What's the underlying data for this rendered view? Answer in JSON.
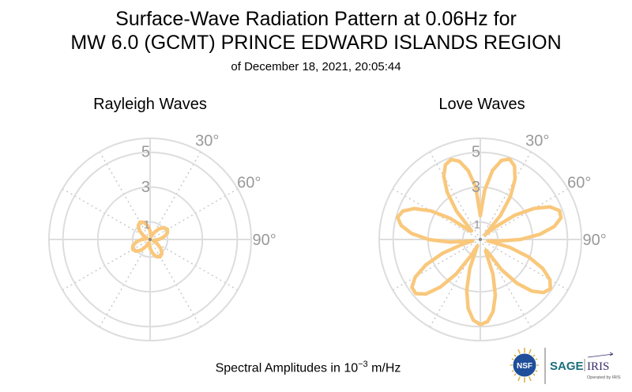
{
  "header": {
    "title_line1": "Surface-Wave Radiation Pattern at 0.06Hz for",
    "title_line2": "MW 6.0 (GCMT) PRINCE EDWARD ISLANDS REGION",
    "subtitle": "of December 18, 2021, 20:05:44"
  },
  "footer": {
    "units_prefix": "Spectral Amplitudes in ",
    "units_base": "10",
    "units_exp": "−3",
    "units_suffix": " m/Hz"
  },
  "logos": {
    "nsf": "NSF",
    "sage": "SAGE",
    "iris": "IRIS",
    "operated": "Operated by IRIS"
  },
  "colors": {
    "pattern": "#f9c87c",
    "grid_circle": "#dddddd",
    "grid_dotted": "#c8c8c8",
    "tick_label": "#999999"
  },
  "chart_data": [
    {
      "type": "polar-line",
      "title": "Rayleigh Waves",
      "radial_ticks": [
        "1",
        "3",
        "5"
      ],
      "radial_tick_values": [
        1,
        3,
        5
      ],
      "angular_ticks": [
        "30°",
        "60°",
        "90°"
      ],
      "angular_tick_values": [
        30,
        60,
        90
      ],
      "rmax": 5.8,
      "angular_grid_step_deg": 30,
      "direction": "clockwise",
      "zero_at": "north",
      "series": [
        {
          "theta_deg": [
            0,
            10,
            20,
            30,
            40,
            50,
            60,
            70,
            80,
            90,
            100,
            110,
            120,
            130,
            140,
            150,
            160,
            170,
            180,
            190,
            200,
            210,
            220,
            230,
            240,
            250,
            260,
            270,
            280,
            290,
            300,
            310,
            320,
            330,
            340,
            350
          ],
          "r": [
            0.5,
            0.22,
            0.18,
            0.45,
            0.8,
            1.05,
            1.15,
            1.05,
            0.8,
            0.5,
            0.22,
            0.18,
            0.45,
            0.8,
            1.05,
            1.15,
            1.05,
            0.8,
            0.5,
            0.22,
            0.18,
            0.45,
            0.8,
            1.05,
            1.15,
            1.05,
            0.8,
            0.5,
            0.22,
            0.18,
            0.45,
            0.8,
            1.05,
            1.15,
            1.05,
            0.8
          ]
        }
      ]
    },
    {
      "type": "polar-line",
      "title": "Love Waves",
      "radial_ticks": [
        "1",
        "3",
        "5"
      ],
      "radial_tick_values": [
        1,
        3,
        5
      ],
      "angular_ticks": [
        "30°",
        "60°",
        "90°"
      ],
      "angular_tick_values": [
        30,
        60,
        90
      ],
      "rmax": 5.8,
      "angular_grid_step_deg": 30,
      "direction": "clockwise",
      "zero_at": "north",
      "series": [
        {
          "theta_deg": [
            0,
            5,
            10,
            15,
            20,
            25,
            30,
            35,
            40,
            45,
            50,
            55,
            60,
            65,
            70,
            75,
            80,
            85,
            90,
            95,
            100,
            105,
            110,
            115,
            120,
            125,
            130,
            135,
            140,
            145,
            150,
            155,
            160,
            165,
            170,
            175,
            180,
            185,
            190,
            195,
            200,
            205,
            210,
            215,
            220,
            225,
            230,
            235,
            240,
            245,
            250,
            255,
            260,
            265,
            270,
            275,
            280,
            285,
            290,
            295,
            300,
            305,
            310,
            315,
            320,
            325,
            330,
            335,
            340,
            345,
            350,
            355
          ],
          "r": [
            1.36,
            2.84,
            4.01,
            4.69,
            4.91,
            4.64,
            3.98,
            3.0,
            1.78,
            0.38,
            1.07,
            2.43,
            3.56,
            4.42,
            4.83,
            4.79,
            4.31,
            3.44,
            2.3,
            1.05,
            0.44,
            1.75,
            2.97,
            3.96,
            4.61,
            4.91,
            4.74,
            4.19,
            3.28,
            2.1,
            0.74,
            0.71,
            2.12,
            3.32,
            4.2,
            4.73,
            4.88,
            4.64,
            4.01,
            3.01,
            1.78,
            0.4,
            1.07,
            2.43,
            3.56,
            4.42,
            4.83,
            4.79,
            4.31,
            3.44,
            2.3,
            1.05,
            0.44,
            1.75,
            2.97,
            3.96,
            4.61,
            4.91,
            4.74,
            4.19,
            3.28,
            2.1,
            0.74,
            0.71,
            2.12,
            3.32,
            4.2,
            4.73,
            4.88,
            4.64,
            4.01,
            3.01
          ]
        }
      ]
    }
  ]
}
